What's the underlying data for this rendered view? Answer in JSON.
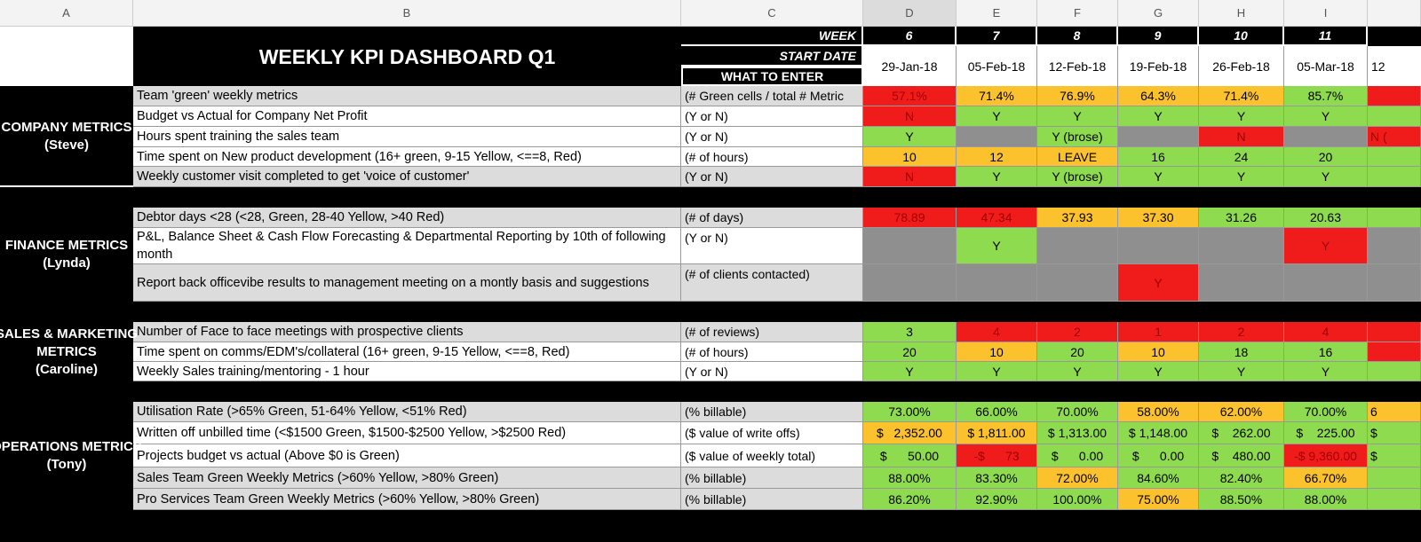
{
  "columns": [
    "A",
    "B",
    "C",
    "D",
    "E",
    "F",
    "G",
    "H",
    "I"
  ],
  "title": "WEEKLY KPI DASHBOARD Q1",
  "labels": {
    "week": "WEEK",
    "start_date": "START DATE",
    "what_to_enter": "WHAT TO ENTER"
  },
  "weeks": [
    "6",
    "7",
    "8",
    "9",
    "10",
    "11"
  ],
  "dates": [
    "29-Jan-18",
    "05-Feb-18",
    "12-Feb-18",
    "19-Feb-18",
    "26-Feb-18",
    "05-Mar-18"
  ],
  "partial_date": "12",
  "sections": [
    {
      "label": [
        "COMPANY METRICS",
        "(Steve)"
      ],
      "rows": [
        {
          "metric": "Team 'green' weekly metrics",
          "enter": "(# Green cells / total # Metric",
          "cells": [
            "57.1%",
            "71.4%",
            "76.9%",
            "64.3%",
            "71.4%",
            "85.7%",
            ""
          ],
          "fills": [
            "#f01c1c",
            "#fcc22d",
            "#fcc22d",
            "#fcc22d",
            "#fcc22d",
            "#8fdb4f",
            "#f01c1c"
          ]
        },
        {
          "metric": "Budget vs Actual for Company Net Profit",
          "enter": "(Y or N)",
          "cells": [
            "N",
            "Y",
            "Y",
            "Y",
            "Y",
            "Y",
            ""
          ],
          "fills": [
            "#f01c1c",
            "#8fdb4f",
            "#8fdb4f",
            "#8fdb4f",
            "#8fdb4f",
            "#8fdb4f",
            "#8fdb4f"
          ]
        },
        {
          "metric": "Hours spent training the sales team",
          "enter": "(Y or N)",
          "cells": [
            "Y",
            "",
            "Y (brose)",
            "",
            "N",
            "",
            "N ("
          ],
          "fills": [
            "#8fdb4f",
            "#8f8f8f",
            "#8fdb4f",
            "#8f8f8f",
            "#f01c1c",
            "#8f8f8f",
            "#f01c1c"
          ]
        },
        {
          "metric": "Time spent on New product development  (16+ green, 9-15 Yellow, <==8, Red)",
          "enter": "(# of hours)",
          "cells": [
            "10",
            "12",
            "LEAVE",
            "16",
            "24",
            "20",
            ""
          ],
          "fills": [
            "#fcc22d",
            "#fcc22d",
            "#fcc22d",
            "#8fdb4f",
            "#8fdb4f",
            "#8fdb4f",
            "#8fdb4f"
          ]
        },
        {
          "metric": "Weekly customer visit completed to get 'voice of customer'",
          "enter": "(Y or N)",
          "cells": [
            "N",
            "Y",
            "Y (brose)",
            "Y",
            "Y",
            "Y",
            ""
          ],
          "fills": [
            "#f01c1c",
            "#8fdb4f",
            "#8fdb4f",
            "#8fdb4f",
            "#8fdb4f",
            "#8fdb4f",
            "#8fdb4f"
          ]
        }
      ]
    },
    {
      "label": [
        "FINANCE METRICS",
        "(Lynda)"
      ],
      "rows": [
        {
          "metric": "Debtor days <28 (<28, Green, 28-40 Yellow, >40 Red)",
          "enter": "(# of days)",
          "cells": [
            "78.89",
            "47.34",
            "37.93",
            "37.30",
            "31.26",
            "20.63",
            ""
          ],
          "fills": [
            "#f01c1c",
            "#f01c1c",
            "#fcc22d",
            "#fcc22d",
            "#8fdb4f",
            "#8fdb4f",
            "#8fdb4f"
          ]
        },
        {
          "metric": "P&L, Balance Sheet & Cash Flow Forecasting & Departmental Reporting by 10th of following month",
          "enter": "(Y or N)",
          "cells": [
            "",
            "Y",
            "",
            "",
            "",
            "Y",
            ""
          ],
          "fills": [
            "#8f8f8f",
            "#8fdb4f",
            "#8f8f8f",
            "#8f8f8f",
            "#8f8f8f",
            "#f01c1c",
            "#8f8f8f"
          ]
        },
        {
          "metric": "Report back officevibe results to management meeting on a montly basis and suggestions",
          "enter": "(# of clients contacted)",
          "cells": [
            "",
            "",
            "",
            "Y",
            "",
            "",
            ""
          ],
          "fills": [
            "#8f8f8f",
            "#8f8f8f",
            "#8f8f8f",
            "#f01c1c",
            "#8f8f8f",
            "#8f8f8f",
            "#8f8f8f"
          ]
        }
      ]
    },
    {
      "label": [
        "SALES & MARKETING",
        "METRICS",
        "(Caroline)"
      ],
      "rows": [
        {
          "metric": "Number of Face to face meetings with prospective clients",
          "enter": "(# of reviews)",
          "cells": [
            "3",
            "4",
            "2",
            "1",
            "2",
            "4",
            ""
          ],
          "fills": [
            "#8fdb4f",
            "#f01c1c",
            "#f01c1c",
            "#f01c1c",
            "#f01c1c",
            "#f01c1c",
            "#f01c1c"
          ]
        },
        {
          "metric": "Time spent on comms/EDM's/collateral  (16+ green, 9-15 Yellow, <==8, Red)",
          "enter": "(# of hours)",
          "cells": [
            "20",
            "10",
            "20",
            "10",
            "18",
            "16",
            ""
          ],
          "fills": [
            "#8fdb4f",
            "#fcc22d",
            "#8fdb4f",
            "#fcc22d",
            "#8fdb4f",
            "#8fdb4f",
            "#f01c1c"
          ]
        },
        {
          "metric": "Weekly Sales training/mentoring - 1 hour",
          "enter": "(Y or N)",
          "cells": [
            "Y",
            "Y",
            "Y",
            "Y",
            "Y",
            "Y",
            ""
          ],
          "fills": [
            "#8fdb4f",
            "#8fdb4f",
            "#8fdb4f",
            "#8fdb4f",
            "#8fdb4f",
            "#8fdb4f",
            "#8fdb4f"
          ]
        }
      ]
    },
    {
      "label": [
        "OPERATIONS METRICS",
        "(Tony)"
      ],
      "rows": [
        {
          "metric": "Utilisation Rate (>65% Green, 51-64% Yellow, <51% Red)",
          "enter": "(% billable)",
          "cells": [
            "73.00%",
            "66.00%",
            "70.00%",
            "58.00%",
            "62.00%",
            "70.00%",
            "6"
          ],
          "fills": [
            "#8fdb4f",
            "#8fdb4f",
            "#8fdb4f",
            "#fcc22d",
            "#fcc22d",
            "#8fdb4f",
            "#fcc22d"
          ]
        },
        {
          "metric": "Written off unbilled time (<$1500 Green, $1500-$2500 Yellow, >$2500 Red)",
          "enter": "($ value of write offs)",
          "cells": [
            "$   2,352.00",
            "$ 1,811.00",
            "$ 1,313.00",
            "$ 1,148.00",
            "$    262.00",
            "$    225.00",
            "$"
          ],
          "fills": [
            "#fcc22d",
            "#fcc22d",
            "#8fdb4f",
            "#8fdb4f",
            "#8fdb4f",
            "#8fdb4f",
            "#8fdb4f"
          ]
        },
        {
          "metric": "Projects budget vs actual (Above $0 is Green)",
          "enter": "($ value of weekly total)",
          "cells": [
            "$      50.00",
            "-$      73",
            "$      0.00",
            "$      0.00",
            "$    480.00",
            "-$ 9,360.00",
            "$"
          ],
          "fills": [
            "#8fdb4f",
            "#f01c1c",
            "#8fdb4f",
            "#8fdb4f",
            "#8fdb4f",
            "#f01c1c",
            "#8fdb4f"
          ]
        },
        {
          "metric": "Sales Team Green Weekly Metrics (>60% Yellow, >80% Green)",
          "enter": "(% billable)",
          "cells": [
            "88.00%",
            "83.30%",
            "72.00%",
            "84.60%",
            "82.40%",
            "66.70%",
            ""
          ],
          "fills": [
            "#8fdb4f",
            "#8fdb4f",
            "#fcc22d",
            "#8fdb4f",
            "#8fdb4f",
            "#fcc22d",
            "#8fdb4f"
          ]
        },
        {
          "metric": "Pro Services Team Green Weekly Metrics (>60% Yellow, >80% Green)",
          "enter": "(% billable)",
          "cells": [
            "86.20%",
            "92.90%",
            "100.00%",
            "75.00%",
            "88.50%",
            "88.00%",
            ""
          ],
          "fills": [
            "#8fdb4f",
            "#8fdb4f",
            "#8fdb4f",
            "#fcc22d",
            "#8fdb4f",
            "#8fdb4f",
            "#8fdb4f"
          ]
        }
      ]
    }
  ]
}
